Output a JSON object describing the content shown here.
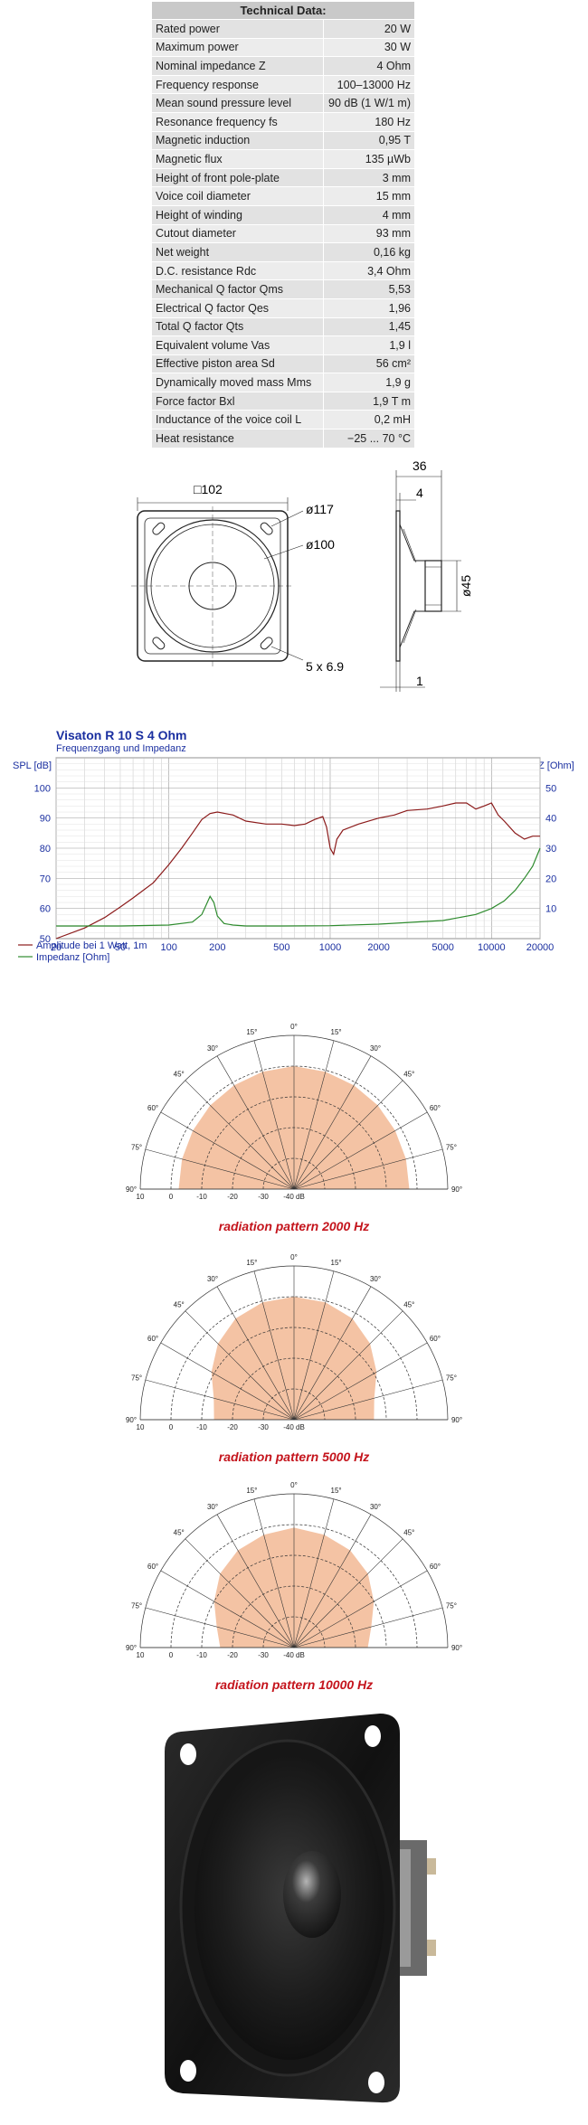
{
  "tech_table": {
    "title": "Technical Data:",
    "rows": [
      {
        "label": "Rated power",
        "value": "20 W"
      },
      {
        "label": "Maximum power",
        "value": "30 W"
      },
      {
        "label": "Nominal impedance Z",
        "value": "4 Ohm"
      },
      {
        "label": "Frequency response",
        "value": "100–13000 Hz"
      },
      {
        "label": "Mean sound pressure level",
        "value": "90 dB (1 W/1 m)"
      },
      {
        "label": "Resonance frequency fs",
        "value": "180 Hz"
      },
      {
        "label": "Magnetic induction",
        "value": "0,95 T"
      },
      {
        "label": "Magnetic flux",
        "value": "135 µWb"
      },
      {
        "label": "Height of front pole-plate",
        "value": "3 mm"
      },
      {
        "label": "Voice coil diameter",
        "value": "15 mm"
      },
      {
        "label": "Height of winding",
        "value": "4 mm"
      },
      {
        "label": "Cutout diameter",
        "value": "93 mm"
      },
      {
        "label": "Net weight",
        "value": "0,16 kg"
      },
      {
        "label": "D.C. resistance Rdc",
        "value": "3,4 Ohm"
      },
      {
        "label": "Mechanical Q factor Qms",
        "value": "5,53"
      },
      {
        "label": "Electrical Q factor Qes",
        "value": "1,96"
      },
      {
        "label": "Total Q factor Qts",
        "value": "1,45"
      },
      {
        "label": "Equivalent volume Vas",
        "value": "1,9 l"
      },
      {
        "label": "Effective piston area Sd",
        "value": "56 cm²"
      },
      {
        "label": "Dynamically moved mass Mms",
        "value": "1,9 g"
      },
      {
        "label": "Force factor Bxl",
        "value": "1,9 T m"
      },
      {
        "label": "Inductance of the voice coil L",
        "value": "0,2 mH"
      },
      {
        "label": "Heat resistance",
        "value": "−25 ... 70 °C"
      }
    ]
  },
  "drawing": {
    "square": "□102",
    "d117": "ø117",
    "d100": "ø100",
    "holes": "5 x 6.9",
    "depth": "36",
    "flange": "4",
    "d45": "ø45",
    "t1": "1"
  },
  "chart_data": [
    {
      "type": "line",
      "title": "Visaton R 10 S 4 Ohm",
      "subtitle": "Frequenzgang und Impedanz",
      "ylabel": "SPL [dB]",
      "y2label": "Z [Ohm]",
      "xscale": "log",
      "xlim": [
        20,
        20000
      ],
      "ylim": [
        50,
        110
      ],
      "y2lim": [
        0,
        60
      ],
      "x_ticks": [
        "20",
        "50",
        "100",
        "200",
        "500",
        "1000",
        "2000",
        "5000",
        "10000",
        "20000"
      ],
      "y_ticks": [
        "50",
        "60",
        "70",
        "80",
        "90",
        "100"
      ],
      "y2_ticks": [
        "10",
        "20",
        "30",
        "40",
        "50"
      ],
      "legend": [
        "Amplitude bei 1 Watt, 1m",
        "Impedanz [Ohm]"
      ],
      "series": [
        {
          "name": "Amplitude bei 1 Watt, 1m",
          "color": "#8b1a1a",
          "x": [
            20,
            30,
            40,
            50,
            60,
            80,
            100,
            120,
            140,
            160,
            180,
            200,
            250,
            300,
            400,
            500,
            600,
            700,
            800,
            900,
            950,
            1000,
            1050,
            1100,
            1200,
            1500,
            2000,
            2500,
            3000,
            4000,
            5000,
            6000,
            7000,
            8000,
            9000,
            10000,
            11000,
            12000,
            14000,
            16000,
            18000,
            20000
          ],
          "y": [
            50,
            53.5,
            57,
            60.5,
            63.5,
            68.5,
            74.5,
            80,
            85,
            89.5,
            91.5,
            92,
            91,
            89,
            88,
            88,
            87.5,
            88,
            89.5,
            90.5,
            87,
            80,
            78,
            83,
            86,
            88,
            90,
            91,
            92.5,
            93,
            94,
            95,
            95,
            93,
            94,
            95,
            91,
            89,
            85,
            83,
            84,
            84
          ]
        },
        {
          "name": "Impedanz [Ohm]",
          "color": "#2e8b2e",
          "x": [
            20,
            50,
            100,
            140,
            160,
            170,
            180,
            190,
            200,
            220,
            250,
            300,
            500,
            1000,
            2000,
            5000,
            8000,
            10000,
            12000,
            14000,
            16000,
            18000,
            20000
          ],
          "y": [
            4.2,
            4.2,
            4.5,
            5.5,
            8,
            11,
            14,
            12,
            7.5,
            5,
            4.5,
            4.2,
            4.2,
            4.3,
            4.8,
            6,
            8,
            10,
            12.5,
            16,
            20,
            24,
            30
          ]
        }
      ]
    },
    {
      "type": "polar",
      "caption": "radiation pattern 2000 Hz",
      "r_ticks": [
        "10",
        "0",
        "-10",
        "-20",
        "-30",
        "-40 dB"
      ],
      "angle_labels": [
        "0°",
        "15°",
        "30°",
        "45°",
        "60°",
        "75°",
        "90°"
      ],
      "angles": [
        0,
        15,
        30,
        45,
        60,
        75,
        90
      ],
      "db": [
        0,
        -0.5,
        -1,
        -1.5,
        -2,
        -2.3,
        -2.5
      ]
    },
    {
      "type": "polar",
      "caption": "radiation pattern 5000 Hz",
      "r_ticks": [
        "10",
        "0",
        "-10",
        "-20",
        "-30",
        "-40 dB"
      ],
      "angle_labels": [
        "0°",
        "15°",
        "30°",
        "45°",
        "60°",
        "75°",
        "90°"
      ],
      "angles": [
        0,
        15,
        30,
        45,
        60,
        75,
        90
      ],
      "db": [
        0,
        -0.5,
        -2,
        -5,
        -9,
        -13,
        -14
      ]
    },
    {
      "type": "polar",
      "caption": "radiation pattern 10000 Hz",
      "r_ticks": [
        "10",
        "0",
        "-10",
        "-20",
        "-30",
        "-40 dB"
      ],
      "angle_labels": [
        "0°",
        "15°",
        "30°",
        "45°",
        "60°",
        "75°",
        "90°"
      ],
      "angles": [
        0,
        15,
        30,
        45,
        60,
        75,
        90
      ],
      "db": [
        -1,
        -2,
        -3.5,
        -6,
        -10,
        -14,
        -16
      ]
    }
  ],
  "colors": {
    "polar_fill": "#f4c3a4",
    "caption": "#c4141c",
    "chart_title": "#1a2fa0"
  }
}
